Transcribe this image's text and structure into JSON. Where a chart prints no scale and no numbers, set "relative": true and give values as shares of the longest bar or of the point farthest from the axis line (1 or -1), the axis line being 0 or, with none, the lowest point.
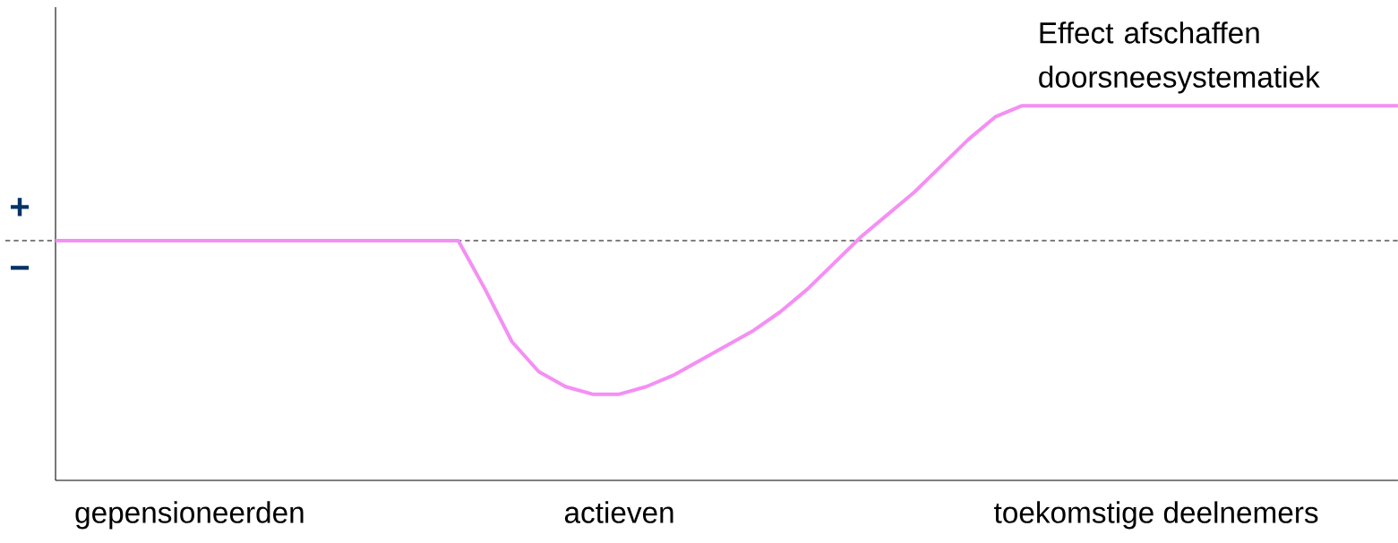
{
  "chart_data": {
    "type": "line",
    "relative": true,
    "categories": [
      null,
      null,
      null,
      null,
      null,
      "gepensioneerden",
      null,
      null,
      null,
      null,
      null,
      null,
      null,
      null,
      null,
      null,
      null,
      null,
      null,
      null,
      null,
      "actieven",
      null,
      null,
      null,
      null,
      null,
      null,
      null,
      null,
      null,
      null,
      null,
      null,
      null,
      null,
      null,
      null,
      null,
      null,
      null,
      "toekomstige deelnemers",
      null,
      null,
      null,
      null,
      null,
      null,
      null,
      null,
      null
    ],
    "series": [
      {
        "name": "Effect afschaffen doorsneesystematiek",
        "color": "#f48ff4",
        "values": [
          0.64,
          0.64,
          0.64,
          0.64,
          0.64,
          0.64,
          0.64,
          0.64,
          0.64,
          0.64,
          0.64,
          0.64,
          0.64,
          0.64,
          0.64,
          0.64,
          0.51,
          0.37,
          0.29,
          0.25,
          0.23,
          0.23,
          0.25,
          0.28,
          0.32,
          0.36,
          0.4,
          0.45,
          0.51,
          0.58,
          0.65,
          0.71,
          0.77,
          0.84,
          0.91,
          0.97,
          1,
          1,
          1,
          1,
          1,
          1,
          1,
          1,
          1,
          1,
          1,
          1,
          1,
          1,
          1
        ]
      }
    ],
    "ref_lines": [
      {
        "axis": "y",
        "value": 0.64,
        "color": "#000000",
        "line_style": "dashed"
      }
    ],
    "annotations": [
      "+",
      "−"
    ]
  }
}
